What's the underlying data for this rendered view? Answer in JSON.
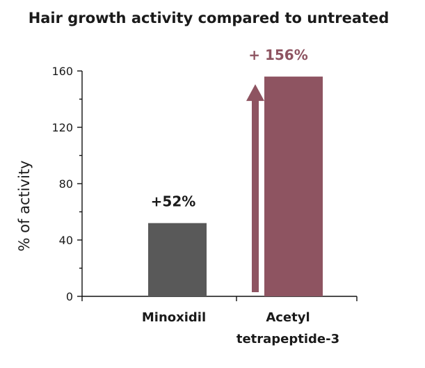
{
  "chart_data": {
    "type": "bar",
    "title": "Hair growth activity compared to untreated",
    "ylabel": "% of activity",
    "xlabel": "",
    "ylim": [
      0,
      160
    ],
    "yticks": [
      0,
      40,
      80,
      120,
      160
    ],
    "grid": false,
    "legend": "none",
    "categories": [
      {
        "label_lines": [
          "Minoxidil"
        ]
      },
      {
        "label_lines": [
          "Acetyl",
          "tetrapeptide-3"
        ]
      }
    ],
    "values": [
      52,
      156
    ],
    "data_labels": [
      "+52%",
      "+ 156%"
    ],
    "colors": {
      "bars": [
        "#595959",
        "#8e5461"
      ],
      "data_labels": [
        "#1a1a1a",
        "#8e5461"
      ],
      "arrow": "#8e5461"
    },
    "annotations": [
      {
        "type": "arrow",
        "category_index": 1,
        "from_value": 0,
        "to_value": 156
      }
    ]
  }
}
